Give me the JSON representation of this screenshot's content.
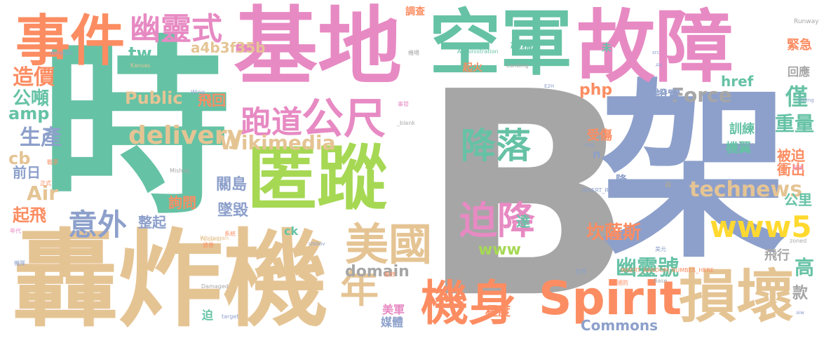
{
  "palette": {
    "gray": "#a6a6a6",
    "teal": "#66c2a5",
    "salmon": "#fc8d62",
    "periwinkle": "#8da0cb",
    "pink": "#e78ac3",
    "lime": "#a6d854",
    "yellow": "#ffd92f",
    "tan": "#e5c494"
  },
  "words": [
    {
      "text": "B",
      "color": "gray"
    },
    {
      "text": "架",
      "color": "periwinkle"
    },
    {
      "text": "時",
      "color": "teal"
    },
    {
      "text": "基地",
      "color": "pink"
    },
    {
      "text": "空軍",
      "color": "teal"
    },
    {
      "text": "故障",
      "color": "pink"
    },
    {
      "text": "轟炸機",
      "color": "tan"
    },
    {
      "text": "匿蹤",
      "color": "lime"
    },
    {
      "text": "事件",
      "color": "salmon"
    },
    {
      "text": "幽靈式",
      "color": "pink"
    },
    {
      "text": "Spirit",
      "color": "salmon"
    },
    {
      "text": "損壞",
      "color": "tan"
    },
    {
      "text": "機身",
      "color": "salmon"
    },
    {
      "text": "美國",
      "color": "tan"
    },
    {
      "text": "公尺",
      "color": "pink"
    },
    {
      "text": "降落",
      "color": "teal"
    },
    {
      "text": "迫降",
      "color": "pink"
    },
    {
      "text": "跑道",
      "color": "pink"
    },
    {
      "text": "年",
      "color": "tan"
    },
    {
      "text": "www5",
      "color": "yellow"
    },
    {
      "text": "意外",
      "color": "periwinkle"
    },
    {
      "text": "delivery",
      "color": "tan"
    },
    {
      "text": "Wikimedia",
      "color": "tan"
    },
    {
      "text": "technews",
      "color": "tan"
    },
    {
      "text": "Force",
      "color": "gray"
    },
    {
      "text": "Public",
      "color": "tan"
    },
    {
      "text": "domain",
      "color": "gray"
    },
    {
      "text": "www",
      "color": "lime"
    },
    {
      "text": "Commons",
      "color": "periwinkle"
    },
    {
      "text": "僅",
      "color": "teal"
    },
    {
      "text": "高",
      "color": "teal"
    },
    {
      "text": "重量",
      "color": "teal"
    },
    {
      "text": "幽靈號",
      "color": "teal"
    },
    {
      "text": "坎薩斯",
      "color": "salmon"
    },
    {
      "text": "a4b3f35b",
      "color": "tan"
    },
    {
      "text": "tw",
      "color": "teal"
    },
    {
      "text": "php",
      "color": "salmon"
    },
    {
      "text": "造價",
      "color": "salmon"
    },
    {
      "text": "公噸",
      "color": "teal"
    },
    {
      "text": "amp",
      "color": "teal"
    },
    {
      "text": "生產",
      "color": "periwinkle"
    },
    {
      "text": "cb",
      "color": "tan"
    },
    {
      "text": "Air",
      "color": "tan"
    },
    {
      "text": "前日",
      "color": "periwinkle"
    },
    {
      "text": "起飛",
      "color": "salmon"
    },
    {
      "text": "關島",
      "color": "periwinkle"
    },
    {
      "text": "墜毀",
      "color": "periwinkle"
    },
    {
      "text": "詢問",
      "color": "salmon"
    },
    {
      "text": "整起",
      "color": "periwinkle"
    },
    {
      "text": "飛回",
      "color": "salmon"
    },
    {
      "text": "應",
      "color": "gray"
    },
    {
      "text": "證實",
      "color": "periwinkle"
    },
    {
      "text": "受傷",
      "color": "salmon"
    },
    {
      "text": "訓練",
      "color": "teal"
    },
    {
      "text": "機翼",
      "color": "teal"
    },
    {
      "text": "被迫",
      "color": "salmon"
    },
    {
      "text": "衝出",
      "color": "salmon"
    },
    {
      "text": "公里",
      "color": "teal"
    },
    {
      "text": "達",
      "color": "teal"
    },
    {
      "text": "飛行",
      "color": "gray"
    },
    {
      "text": "款",
      "color": "gray"
    },
    {
      "text": "美軍",
      "color": "pink"
    },
    {
      "text": "媒體",
      "color": "periwinkle"
    },
    {
      "text": "程度",
      "color": "salmon"
    },
    {
      "text": "href",
      "color": "teal"
    },
    {
      "text": "緊急",
      "color": "salmon"
    },
    {
      "text": "回應",
      "color": "gray"
    },
    {
      "text": "調查",
      "color": "salmon"
    },
    {
      "text": "機械",
      "color": "teal"
    },
    {
      "text": "起火",
      "color": "salmon"
    },
    {
      "text": "未",
      "color": "teal"
    },
    {
      "text": "ck",
      "color": "teal"
    },
    {
      "text": "降",
      "color": "periwinkle"
    },
    {
      "text": "n",
      "color": "periwinkle"
    },
    {
      "text": "a",
      "color": "gray"
    },
    {
      "text": "迫",
      "color": "teal"
    },
    {
      "text": "Administration",
      "color": "teal"
    },
    {
      "text": "Runway",
      "color": "gray"
    },
    {
      "text": "Aviation",
      "color": "periwinkle"
    },
    {
      "text": "Kansas",
      "color": "tan"
    },
    {
      "text": "Landing",
      "color": "gray"
    },
    {
      "text": "Wing",
      "color": "periwinkle"
    },
    {
      "text": "Mishap",
      "color": "gray"
    },
    {
      "text": "Whiteman",
      "color": "tan"
    },
    {
      "text": "Federal",
      "color": "tan"
    },
    {
      "text": "USGov",
      "color": "periwinkle"
    },
    {
      "text": "Damaged",
      "color": "gray"
    },
    {
      "text": "INSERT_RANDOM_N",
      "color": "periwinkle"
    },
    {
      "text": "INSERT_RANDOM_NUMBER_HERE",
      "color": "salmon"
    },
    {
      "text": "Source",
      "color": "periwinkle"
    },
    {
      "text": "Sitting",
      "color": "periwinkle"
    },
    {
      "text": "Base",
      "color": "gray"
    },
    {
      "text": "zoned",
      "color": "gray"
    },
    {
      "text": "target",
      "color": "periwinkle"
    },
    {
      "text": "_blank",
      "color": "gray"
    },
    {
      "text": "img",
      "color": "periwinkle"
    },
    {
      "text": "src",
      "color": "periwinkle"
    },
    {
      "text": "E2H",
      "color": "periwinkle"
    },
    {
      "text": "AV",
      "color": "periwinkle"
    },
    {
      "text": "aiw",
      "color": "periwinkle"
    },
    {
      "text": "事發",
      "color": "pink"
    },
    {
      "text": "戰爭",
      "color": "salmon"
    },
    {
      "text": "年代",
      "color": "pink"
    },
    {
      "text": "正式",
      "color": "salmon"
    },
    {
      "text": "機隊",
      "color": "periwinkle"
    },
    {
      "text": "世界",
      "color": "periwinkle"
    },
    {
      "text": "美元",
      "color": "periwinkle"
    },
    {
      "text": "系統",
      "color": "salmon"
    },
    {
      "text": "國防",
      "color": "salmon"
    },
    {
      "text": "波音",
      "color": "salmon"
    },
    {
      "text": "技術",
      "color": "pink"
    },
    {
      "text": "機場",
      "color": "gray"
    },
    {
      "text": "維修",
      "color": "salmon"
    }
  ]
}
